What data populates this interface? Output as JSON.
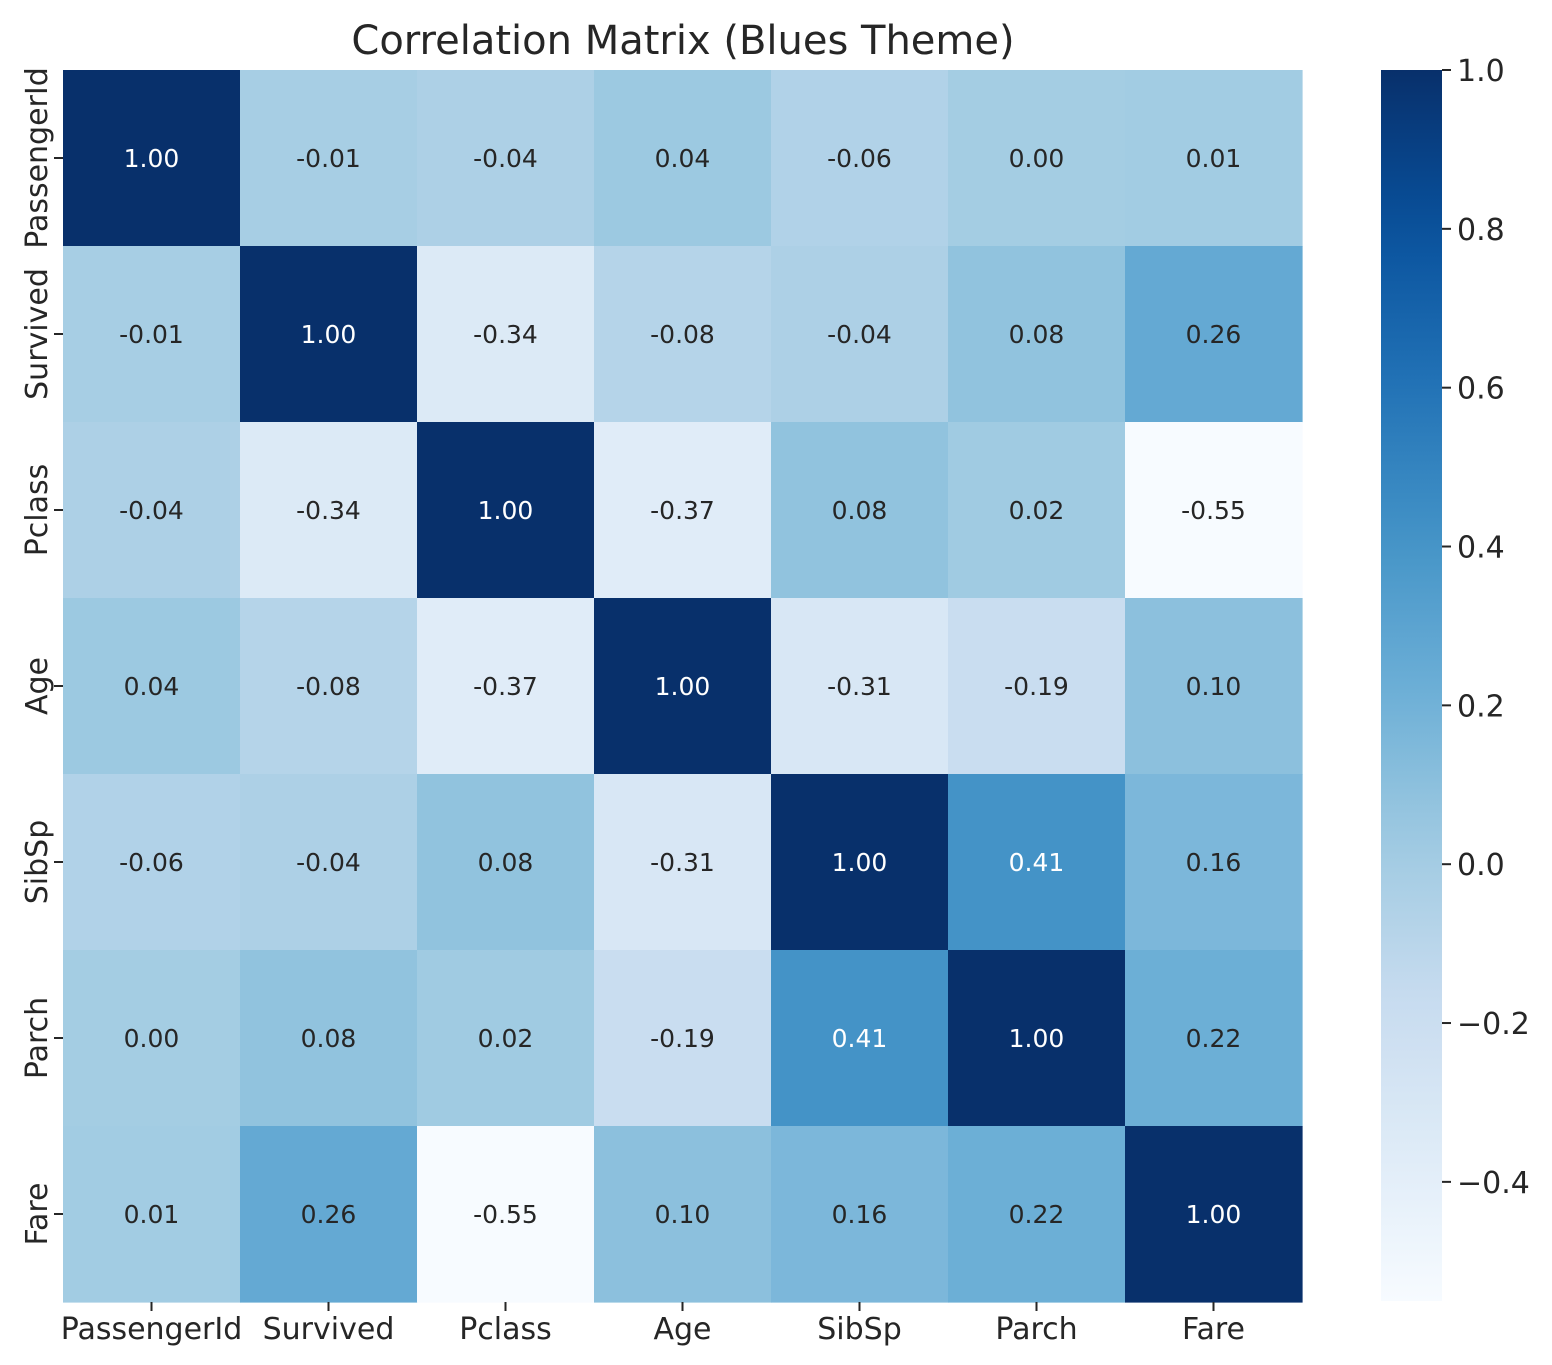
{
  "chart_data": {
    "type": "heatmap",
    "title": "Correlation Matrix (Blues Theme)",
    "xlabel": "",
    "ylabel": "",
    "colormap": "Blues",
    "annotation_format": "0.00",
    "x_categories": [
      "PassengerId",
      "Survived",
      "Pclass",
      "Age",
      "SibSp",
      "Parch",
      "Fare"
    ],
    "y_categories": [
      "PassengerId",
      "Survived",
      "Pclass",
      "Age",
      "SibSp",
      "Parch",
      "Fare"
    ],
    "values": [
      [
        1.0,
        -0.01,
        -0.04,
        0.04,
        -0.06,
        -0.0,
        0.01
      ],
      [
        -0.01,
        1.0,
        -0.34,
        -0.08,
        -0.04,
        0.08,
        0.26
      ],
      [
        -0.04,
        -0.34,
        1.0,
        -0.37,
        0.08,
        0.02,
        -0.55
      ],
      [
        0.04,
        -0.08,
        -0.37,
        1.0,
        -0.31,
        -0.19,
        0.1
      ],
      [
        -0.06,
        -0.04,
        0.08,
        -0.31,
        1.0,
        0.41,
        0.16
      ],
      [
        -0.0,
        0.08,
        0.02,
        -0.19,
        0.41,
        1.0,
        0.22
      ],
      [
        0.01,
        0.26,
        -0.55,
        0.1,
        0.16,
        0.22,
        1.0
      ]
    ],
    "colorbar": {
      "range": [
        -0.55,
        1.0
      ],
      "ticks": [
        -0.4,
        -0.2,
        0.0,
        0.2,
        0.4,
        0.6,
        0.8,
        1.0
      ],
      "tick_labels": [
        "−0.4",
        "−0.2",
        "0.0",
        "0.2",
        "0.4",
        "0.6",
        "0.8",
        "1.0"
      ]
    },
    "colors": {
      "low": "#f7fbff",
      "high": "#08306b",
      "text_dark": "#262626",
      "text_light": "#ffffff"
    }
  }
}
